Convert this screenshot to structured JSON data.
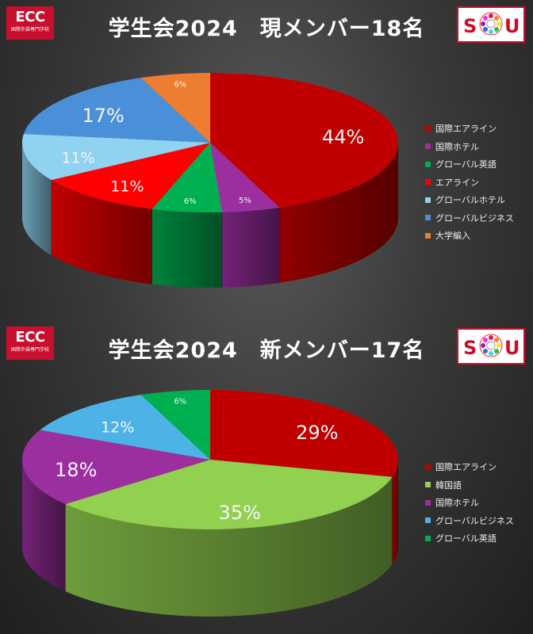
{
  "logos": {
    "ecc_big": "ECC",
    "ecc_small": "国際外語専門学校",
    "sou_text": [
      "S",
      "U"
    ]
  },
  "chart_data": [
    {
      "type": "pie",
      "title": "学生会2024　現メンバー18名",
      "categories": [
        "国際エアライン",
        "国際ホテル",
        "グローバル英語",
        "エアライン",
        "グローバルホテル",
        "グローバルビジネス",
        "大学編入"
      ],
      "values": [
        44,
        5,
        6,
        11,
        11,
        17,
        6
      ],
      "labels": [
        "44%",
        "5%",
        "6%",
        "11%",
        "11%",
        "17%",
        "6%"
      ],
      "colors": [
        "#c00000",
        "#9b2fa0",
        "#00b050",
        "#ff0000",
        "#8fd3f1",
        "#4a90d9",
        "#ed7d31"
      ],
      "legend_position": "right"
    },
    {
      "type": "pie",
      "title": "学生会2024　新メンバー17名",
      "categories": [
        "国際エアライン",
        "韓国語",
        "国際ホテル",
        "グローバルビジネス",
        "グローバル英語"
      ],
      "values": [
        29,
        35,
        18,
        12,
        6
      ],
      "labels": [
        "29%",
        "35%",
        "18%",
        "12%",
        "6%"
      ],
      "colors": [
        "#c00000",
        "#92d050",
        "#9b2fa0",
        "#4db3e6",
        "#00b050"
      ],
      "legend_position": "right"
    }
  ]
}
